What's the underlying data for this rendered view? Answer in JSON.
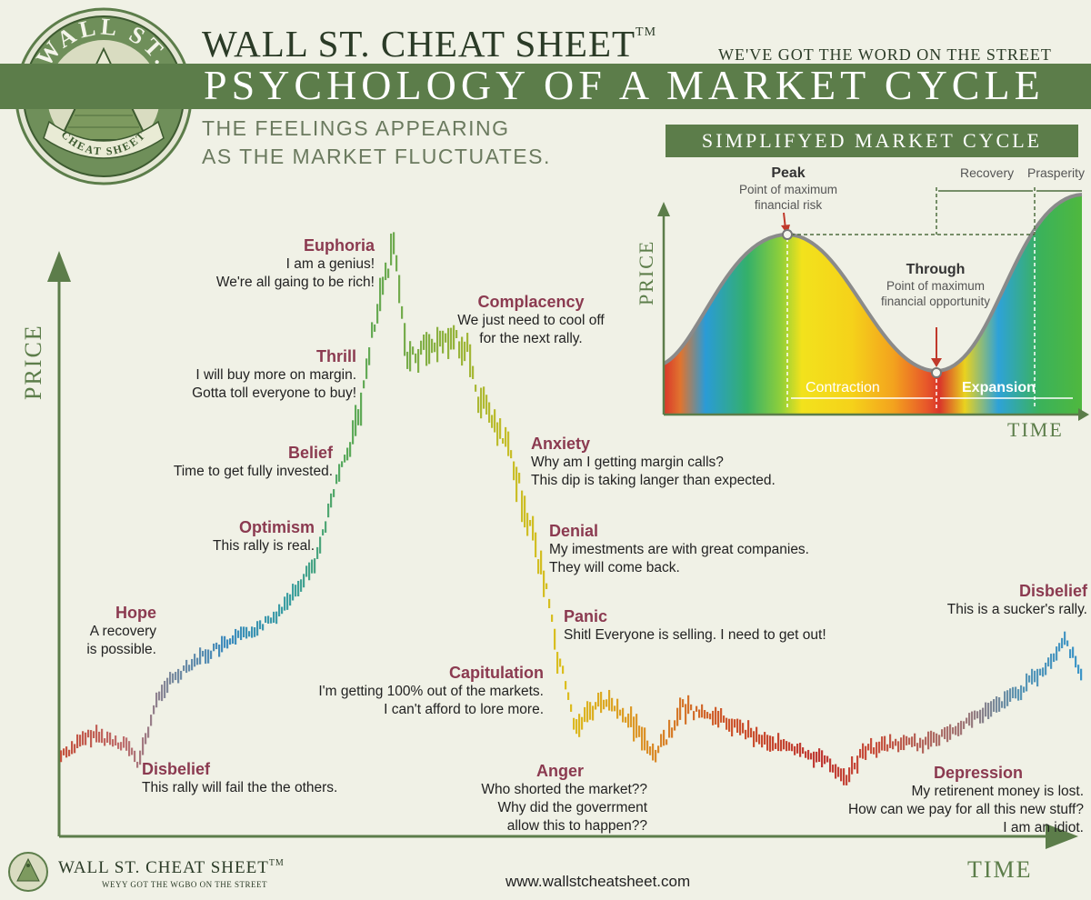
{
  "header": {
    "brand": "WALL ST. CHEAT SHEET",
    "trademark": "TM",
    "tagline": "WE'VE GOT THE WORD ON THE STREET",
    "title": "PSYCHOLOGY OF A MARKET CYCLE",
    "subtitle_line1": "THE FEELINGS APPEARING",
    "subtitle_line2": "AS THE MARKET FLUCTUATES."
  },
  "seal": {
    "top_text": "WALL ST.",
    "bottom_text": "CHEAT SHEET"
  },
  "main_chart": {
    "y_axis_label": "PRICE",
    "x_axis_label": "TIME",
    "stages": [
      {
        "title": "Disbelief",
        "lines": [
          "This rally will fail the the others."
        ]
      },
      {
        "title": "Hope",
        "lines": [
          "A recovery",
          "is possible."
        ]
      },
      {
        "title": "Optimism",
        "lines": [
          "This rally is real."
        ]
      },
      {
        "title": "Belief",
        "lines": [
          "Time to get fully invested."
        ]
      },
      {
        "title": "Thrill",
        "lines": [
          "I will buy more on margin.",
          "Gotta toll everyone to buy!"
        ]
      },
      {
        "title": "Euphoria",
        "lines": [
          "I am a genius!",
          "We're all gaing to be rich!"
        ]
      },
      {
        "title": "Complacency",
        "lines": [
          "We just need to cool off",
          "for the next rally."
        ]
      },
      {
        "title": "Anxiety",
        "lines": [
          "Why am I getting margin calls?",
          "This dip is taking langer than expected."
        ]
      },
      {
        "title": "Denial",
        "lines": [
          "My imestments are with great companies.",
          "They will come back."
        ]
      },
      {
        "title": "Panic",
        "lines": [
          "Shitl Everyone is selling. I need to get out!"
        ]
      },
      {
        "title": "Capitulation",
        "lines": [
          "I'm getting 100% out of the markets.",
          "I can't afford to lore more."
        ]
      },
      {
        "title": "Anger",
        "lines": [
          "Who shorted the market??",
          "Why did the goverrment",
          "allow this to happen??"
        ]
      },
      {
        "title": "Depression",
        "lines": [
          "My retirenent money is lost.",
          "How can we pay for all this new stuff?",
          "I am an idiot."
        ]
      },
      {
        "title": "Disbelief",
        "lines": [
          "This is a sucker's rally."
        ]
      }
    ]
  },
  "inset": {
    "title": "SIMPLIFYED MARKET CYCLE",
    "y_axis_label": "PRICE",
    "x_axis_label": "TIME",
    "peak_title": "Peak",
    "peak_lines": [
      "Point of maximum",
      "financial risk"
    ],
    "trough_title": "Through",
    "trough_lines": [
      "Point of maximum",
      "financial opportunity"
    ],
    "recovery": "Recovery",
    "prosperity": "Prasperity",
    "contraction": "Contraction",
    "expansion": "Expansion"
  },
  "footer": {
    "brand": "WALL ST. CHEAT SHEET",
    "trademark": "TM",
    "tagline": "WEYY GOT THE WGBO ON THE STREET",
    "url": "www.wallstcheatsheet.com"
  },
  "colors": {
    "green": "#5c7d4a",
    "label_red": "#8b3a50",
    "background": "#f0f1e6"
  }
}
